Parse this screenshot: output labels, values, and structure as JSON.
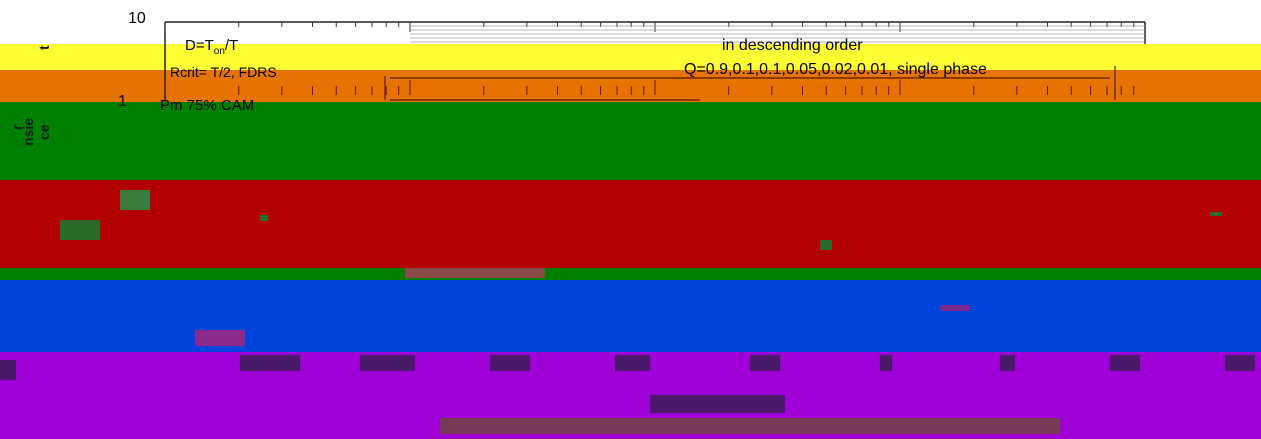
{
  "chart_data": {
    "type": "line",
    "title": "",
    "y_axis": {
      "scale": "log",
      "tick_labels": [
        "10",
        "1"
      ],
      "label_fragments": [
        "r",
        "nsie",
        "ce",
        "t"
      ]
    },
    "legend_text": {
      "ratio": "D=T",
      "ratio_sub": "on",
      "ratio_tail": "/T",
      "order": "in descending order",
      "rates": "Q=0.9,0.1,0.1,0.05,0.02,0.01",
      "phase": "single phase",
      "model": "Rcrit= T/2, FDRS",
      "load": "Pm 75% CAM"
    },
    "series": [
      {
        "name": "",
        "values": []
      }
    ]
  },
  "bands": {
    "top_highlight": "#ffff33",
    "orange": "#e67300",
    "green": "#008000",
    "red": "#b30000",
    "blue": "#0044dd",
    "purple": "#a000d8"
  }
}
